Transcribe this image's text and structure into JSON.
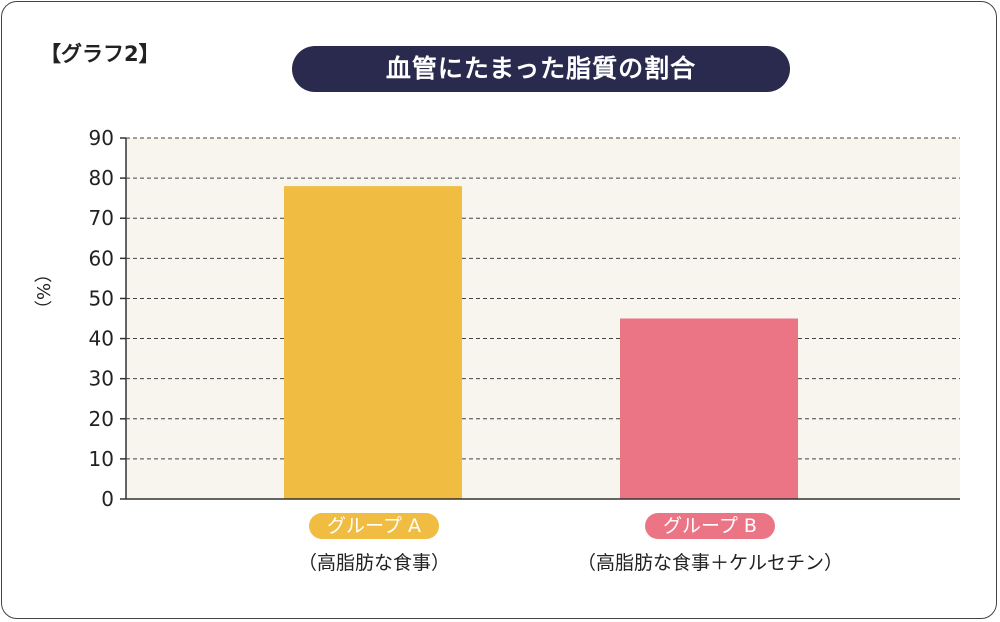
{
  "graph_label": "【グラフ2】",
  "colors": {
    "plot_bg": "#f8f4ee",
    "title_bg": "#2a2a4e",
    "group_a": "#f0bd42",
    "group_b": "#ec7585"
  },
  "chart_data": {
    "type": "bar",
    "title": "血管にたまった脂質の割合",
    "ylabel": "（%）",
    "ylim": [
      0,
      90
    ],
    "yticks": [
      0,
      10,
      20,
      30,
      40,
      50,
      60,
      70,
      80,
      90
    ],
    "grid": true,
    "categories": [
      "グループ A",
      "グループ B"
    ],
    "category_notes": [
      "（高脂肪な食事）",
      "（高脂肪な食事＋ケルセチン）"
    ],
    "values": [
      78,
      45
    ]
  }
}
